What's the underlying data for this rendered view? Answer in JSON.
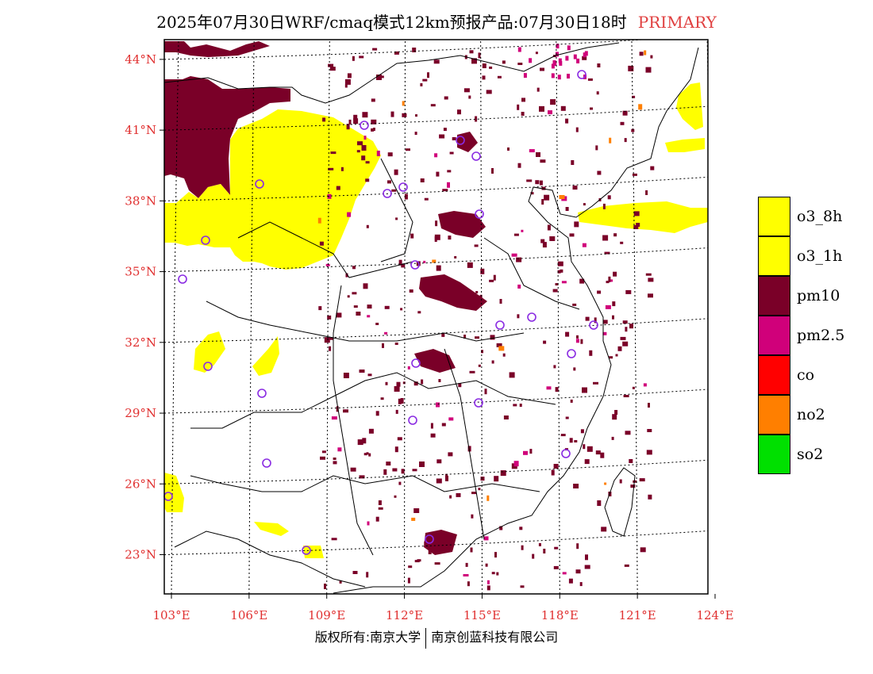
{
  "title": {
    "main": "2025年07月30日WRF/cmaq模式12km预报产品:07月30日18时",
    "flag": "PRIMARY"
  },
  "footer": {
    "left": "版权所有:南京大学",
    "right": "南京创蓝科技有限公司"
  },
  "map": {
    "lon_range": [
      103,
      124
    ],
    "lat_range": [
      21,
      44.5
    ],
    "lon_ticks": [
      {
        "value": 103,
        "label": "103°E"
      },
      {
        "value": 106,
        "label": "106°E"
      },
      {
        "value": 109,
        "label": "109°E"
      },
      {
        "value": 112,
        "label": "112°E"
      },
      {
        "value": 115,
        "label": "115°E"
      },
      {
        "value": 118,
        "label": "118°E"
      },
      {
        "value": 121,
        "label": "121°E"
      },
      {
        "value": 124,
        "label": "124°E"
      }
    ],
    "lat_ticks": [
      {
        "value": 23,
        "label": "23°N"
      },
      {
        "value": 26,
        "label": "26°N"
      },
      {
        "value": 29,
        "label": "29°N"
      },
      {
        "value": 32,
        "label": "32°N"
      },
      {
        "value": 35,
        "label": "35°N"
      },
      {
        "value": 38,
        "label": "38°N"
      },
      {
        "value": 41,
        "label": "41°N"
      },
      {
        "value": 44,
        "label": "44°N"
      }
    ]
  },
  "legend": [
    {
      "label": "o3_8h",
      "color": "#ffff00"
    },
    {
      "label": "o3_1h",
      "color": "#ffff00"
    },
    {
      "label": "pm10",
      "color": "#7a0028"
    },
    {
      "label": "pm2.5",
      "color": "#d0007a"
    },
    {
      "label": "co",
      "color": "#ff0000"
    },
    {
      "label": "no2",
      "color": "#ff7f00"
    },
    {
      "label": "so2",
      "color": "#00e000"
    }
  ],
  "station_color": "#8a2be2"
}
